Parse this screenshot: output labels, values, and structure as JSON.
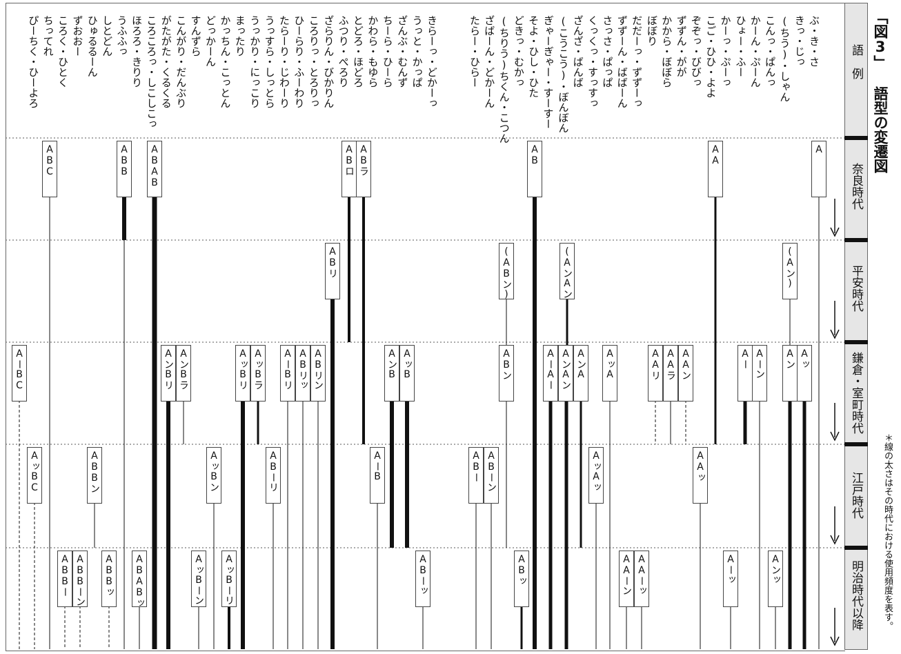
{
  "title": "「図3」 語型の変遷図",
  "footnote": "＊線の太さはその時代における使用頻度を表す。",
  "headers": {
    "examples": "語　例",
    "eras": [
      "奈良時代",
      "平安時代",
      "鎌倉・室町時代",
      "江戸時代",
      "明治時代以降"
    ]
  },
  "examples": [
    "ぶ・き・さ",
    "きっ・じっ",
    "(ちう)・しゃん",
    "こんっ・ぱんっ",
    "かーん・ぷーん",
    "ひょー・ふー",
    "かーっ・ぷーっ",
    "こご・ひひ・よよ",
    "ぞぞっ・びびっ",
    "ずずん・がが",
    "かから・ぼぼら",
    "ぼぼり",
    "だだーっ・ずずーっ",
    "ずずーん・ばばーん",
    "さっさ・ぱっぱ",
    "くっくっ・すっすっ",
    "ざんざ・ばんば",
    "(こうこう)・ぼんぼん",
    "ぎゃーぎゃー・すーすー",
    "そよ・ひし・ひた",
    "どきっ・むかっ",
    "(ちりう)ちくん・こつん",
    "ざばーん・どかーん",
    "たらー・ひらー",
    "きらーっ・どかーっ",
    "うっと・かっぱ",
    "ざんぶ・むんず",
    "ちーら・ひーら",
    "かわら・もゆら",
    "とどろ・ほどろ",
    "ふつり・ぺろり",
    "ざらりん・びかりん",
    "ころりっ・とろりっ",
    "ひーらり・ふーわり",
    "たらーり・じわーり",
    "うっすら・しっとら",
    "うっかり・にっこり",
    "まったり",
    "かっちん・こっとん",
    "どっかーん",
    "すんずら",
    "こんがり・だんぶり",
    "がたがた・くるくる",
    "ころころっ・しこしこっ",
    "ほろろ・きりり",
    "うふふっ",
    "しとどん",
    "ひゅるるーん",
    "ずおおー",
    "ころく・ひとく",
    "ちってれ",
    "ぴーちく・ひーよろ"
  ],
  "era_patterns": {
    "nara": [
      "A",
      "AA",
      "AB",
      "ABラ",
      "ABロ",
      "ABAB",
      "ABB",
      "ABC"
    ],
    "heian": [
      "(Aン)",
      "(AンAン)",
      "(ABン)",
      "ABリ"
    ],
    "kamakura_muromachi": [
      "Aッ",
      "Aン",
      "Aーン",
      "Aー",
      "AAン",
      "AAラ",
      "AAリ",
      "AッA",
      "AンA",
      "AンAン",
      "AーAー",
      "ABン",
      "AッB",
      "AンB",
      "ABリン",
      "ABリッ",
      "AーBリ",
      "AッBラ",
      "AッBリ",
      "AンBラ",
      "AンBリ",
      "AーBC"
    ],
    "edo": [
      "AAッ",
      "AッAッ",
      "ABーン",
      "ABー",
      "AーB",
      "ABーリ",
      "AッBン",
      "ABBン",
      "AッBC"
    ],
    "meiji": [
      "Aンッ",
      "Aーッ",
      "AAーッ",
      "AAーン",
      "ABッ",
      "ABーッ",
      "AッBーリ",
      "AッBーン",
      "ABABッ",
      "ABBッ",
      "ABBーン",
      "ABBー"
    ]
  }
}
